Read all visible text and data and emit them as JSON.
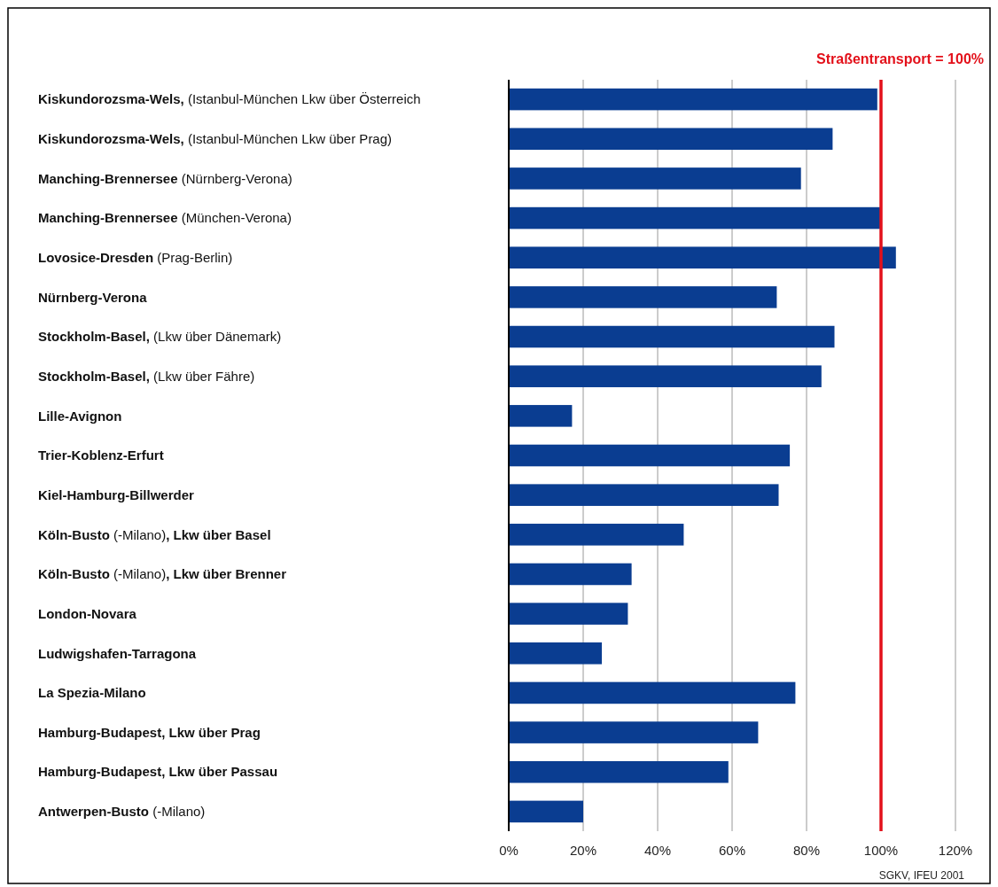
{
  "chart_data": {
    "type": "bar",
    "orientation": "horizontal",
    "categories": [
      "Kiskundorozsma-Wels, (Istanbul-München Lkw über Österreich",
      "Kiskundorozsma-Wels, (Istanbul-München Lkw über Prag)",
      "Manching-Brennersee (Nürnberg-Verona)",
      "Manching-Brennersee (München-Verona)",
      "Lovosice-Dresden (Prag-Berlin)",
      "Nürnberg-Verona",
      "Stockholm-Basel, (Lkw über Dänemark)",
      "Stockholm-Basel, (Lkw über Fähre)",
      "Lille-Avignon",
      "Trier-Koblenz-Erfurt",
      "Kiel-Hamburg-Billwerder",
      "Köln-Busto (-Milano), Lkw über Basel",
      "Köln-Busto (-Milano), Lkw über Brenner",
      "London-Novara",
      "Ludwigshafen-Tarragona",
      "La Spezia-Milano",
      "Hamburg-Budapest, Lkw über Prag",
      "Hamburg-Budapest, Lkw über Passau",
      "Antwerpen-Busto (-Milano)"
    ],
    "values": [
      99,
      87,
      78.5,
      100,
      104,
      72,
      87.5,
      84,
      17,
      75.5,
      72.5,
      47,
      33,
      32,
      25,
      77,
      67,
      59,
      20
    ],
    "color": "#0a3d91",
    "xlim": [
      0,
      120
    ],
    "xticks": [
      {
        "value": 0,
        "label": "0%"
      },
      {
        "value": 20,
        "label": "20%"
      },
      {
        "value": 40,
        "label": "40%"
      },
      {
        "value": 60,
        "label": "60%"
      },
      {
        "value": 80,
        "label": "80%"
      },
      {
        "value": 100,
        "label": "100%"
      },
      {
        "value": 120,
        "label": "120%"
      }
    ],
    "grid": "x",
    "ref_lines": [
      {
        "axis": "x",
        "value": 100,
        "label": "Straßentransport = 100%",
        "color": "#e3101a"
      }
    ],
    "annotations": [
      "SGKV, IFEU 2001"
    ]
  }
}
